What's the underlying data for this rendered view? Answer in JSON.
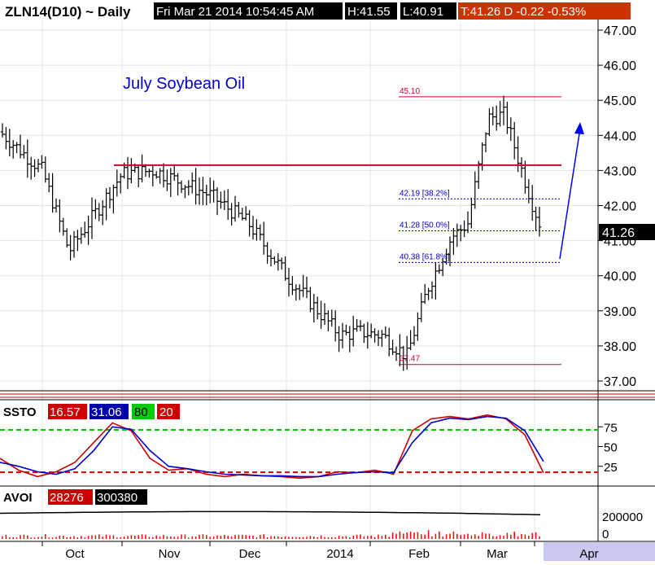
{
  "header": {
    "symbol": "ZLN14(D10) ~ Daily",
    "datetime": "Fri Mar 21 2014 10:54:45 AM",
    "high": "H:41.55",
    "low": "L:40.91",
    "trade": "T:41.26 D  -0.22  -0.53%"
  },
  "annotation": {
    "title": "July Soybean Oil"
  },
  "price_axis": {
    "ticks": [
      "47.00",
      "46.00",
      "45.00",
      "44.00",
      "43.00",
      "42.00",
      "41.00",
      "40.00",
      "39.00",
      "38.00",
      "37.00"
    ],
    "last": "41.26"
  },
  "fib_labels": [
    "45.10",
    "42.19 [38.2%]",
    "41.28 [50.0%]",
    "40.38 [61.8%]",
    "37.47"
  ],
  "ssto": {
    "label": "SSTO",
    "v1": "16.57",
    "v2": "31.06",
    "v3": "80",
    "v4": "20",
    "ticks": [
      "75",
      "50",
      "25"
    ]
  },
  "avoi": {
    "label": "AVOI",
    "v1": "28276",
    "v2": "300380",
    "ticks": [
      "200000",
      "0"
    ]
  },
  "x_axis": {
    "labels": [
      "Oct",
      "Nov",
      "Dec",
      "2014",
      "Feb",
      "Mar",
      "Apr"
    ]
  },
  "colors": {
    "bars": "#000000",
    "resistance": "#cc0033",
    "fib_red": "#cc0033",
    "fib_blue": "#0000cc",
    "arrow": "#0000ff",
    "k_line": "#cc0000",
    "d_line": "#0000cc",
    "ob_line": "#00cc00",
    "os_line": "#ff0000",
    "vol_bars": "#ff0000"
  },
  "chart_data": [
    {
      "type": "ohlc",
      "title": "July Soybean Oil",
      "instrument": "ZLN14(D10)",
      "frequency": "Daily",
      "x": [
        "2013-09-20",
        "2013-10-01",
        "2013-10-09",
        "2013-10-20",
        "2013-11-01",
        "2013-11-18",
        "2013-12-02",
        "2013-12-16",
        "2013-12-30",
        "2014-01-07",
        "2014-01-22",
        "2014-02-03",
        "2014-02-14",
        "2014-02-21",
        "2014-02-28",
        "2014-03-03",
        "2014-03-06",
        "2014-03-12",
        "2014-03-18",
        "2014-03-21"
      ],
      "close": [
        44.1,
        43.0,
        40.7,
        42.9,
        43.0,
        42.3,
        41.5,
        40.0,
        38.3,
        38.4,
        38.3,
        37.7,
        39.6,
        41.1,
        41.5,
        44.5,
        44.6,
        43.1,
        42.0,
        41.26
      ],
      "ylim": [
        36.8,
        47.3
      ],
      "last": 41.26,
      "high": 41.55,
      "low": 40.91,
      "change": -0.22,
      "change_pct": -0.53,
      "resistance": 43.15,
      "fib_levels": [
        {
          "label": "45.10",
          "value": 45.1
        },
        {
          "label": "42.19 [38.2%]",
          "value": 42.19
        },
        {
          "label": "41.28 [50.0%]",
          "value": 41.28
        },
        {
          "label": "40.38 [61.8%]",
          "value": 40.38
        },
        {
          "label": "37.47",
          "value": 37.47
        }
      ]
    },
    {
      "type": "line",
      "title": "SSTO",
      "ylim": [
        0,
        100
      ],
      "thresholds": [
        80,
        20
      ],
      "series": [
        {
          "name": "16.57",
          "values": [
            35,
            20,
            12,
            18,
            30,
            55,
            80,
            70,
            35,
            20,
            22,
            15,
            12,
            15,
            13,
            12,
            10,
            12,
            18,
            17,
            20,
            15,
            70,
            85,
            88,
            85,
            90,
            85,
            65,
            16.57
          ]
        },
        {
          "name": "31.06",
          "values": [
            30,
            25,
            18,
            15,
            22,
            45,
            75,
            72,
            45,
            25,
            22,
            18,
            15,
            14,
            13,
            13,
            12,
            12,
            15,
            17,
            18,
            17,
            55,
            80,
            86,
            84,
            88,
            86,
            70,
            31.06
          ]
        }
      ]
    },
    {
      "type": "bar",
      "title": "AVOI",
      "ylim": [
        0,
        400000
      ],
      "values_label": [
        "28276",
        "300380"
      ],
      "open_interest_level": 300380
    }
  ]
}
